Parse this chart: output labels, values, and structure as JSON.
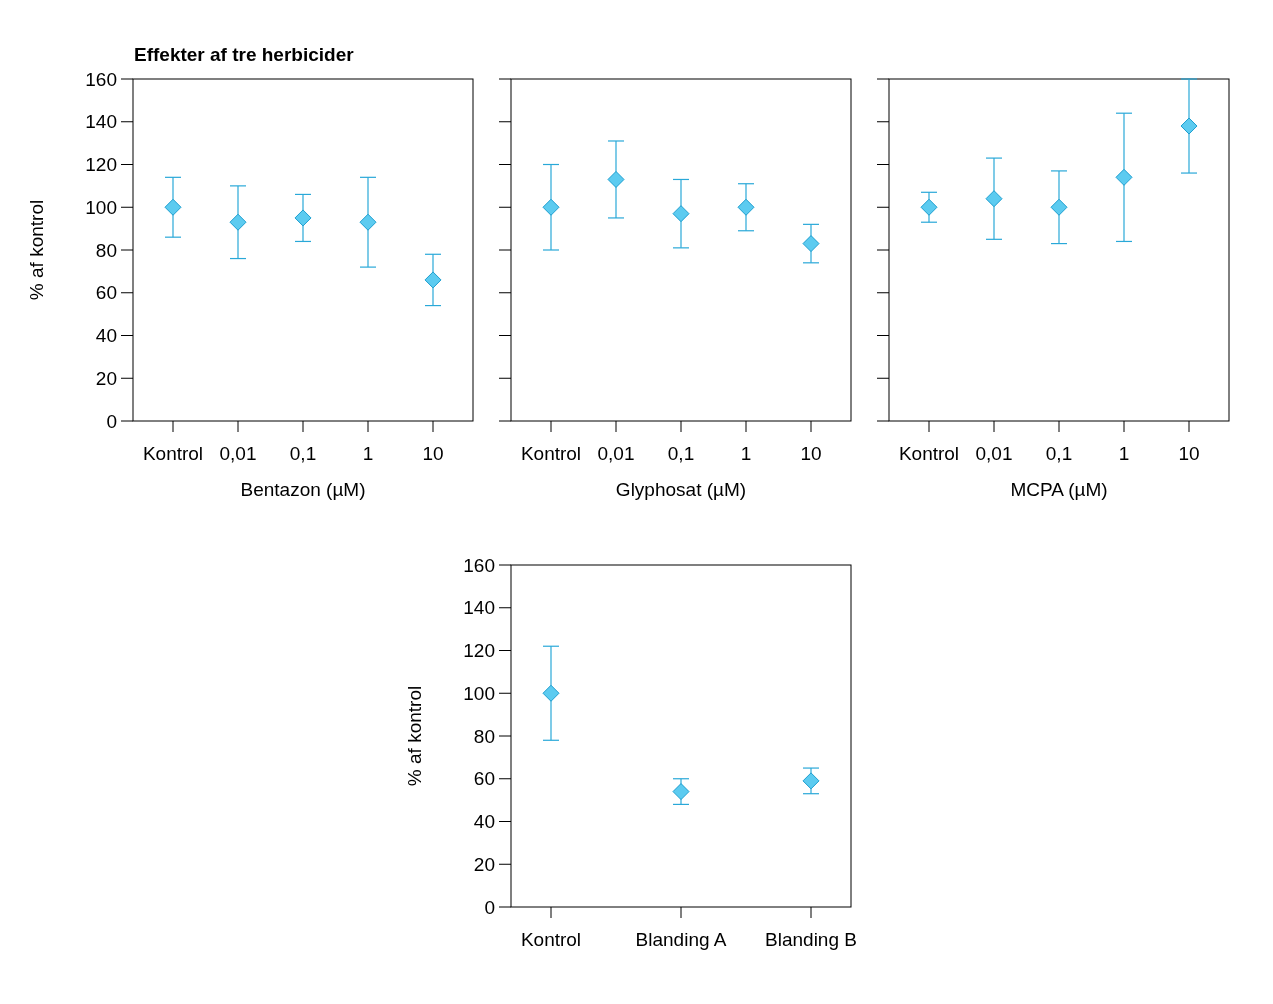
{
  "chart_data": [
    {
      "type": "scatter",
      "title": "Effekter af tre herbicider",
      "xlabel": "Bentazon (µM)",
      "ylabel": "% af kontrol",
      "categories": [
        "Kontrol",
        "0,01",
        "0,1",
        "1",
        "10"
      ],
      "series": [
        {
          "color": "#5ccbf0",
          "values": [
            100,
            93,
            95,
            93,
            66
          ],
          "errors": [
            14,
            17,
            11,
            21,
            12
          ]
        }
      ],
      "ylim": [
        0,
        160
      ],
      "yticks": [
        0,
        20,
        40,
        60,
        80,
        100,
        120,
        140,
        160
      ],
      "marker": "diamond",
      "grid": false
    },
    {
      "type": "scatter",
      "xlabel": "Glyphosat (µM)",
      "categories": [
        "Kontrol",
        "0,01",
        "0,1",
        "1",
        "10"
      ],
      "series": [
        {
          "color": "#5ccbf0",
          "values": [
            100,
            113,
            97,
            100,
            83
          ],
          "errors": [
            20,
            18,
            16,
            11,
            9
          ]
        }
      ],
      "ylim": [
        0,
        160
      ],
      "yticks": [
        0,
        20,
        40,
        60,
        80,
        100,
        120,
        140,
        160
      ],
      "tick_labels": "x",
      "marker": "diamond",
      "grid": false
    },
    {
      "type": "scatter",
      "xlabel": "MCPA (µM)",
      "categories": [
        "Kontrol",
        "0,01",
        "0,1",
        "1",
        "10"
      ],
      "series": [
        {
          "color": "#5ccbf0",
          "values": [
            100,
            104,
            100,
            114,
            138
          ],
          "errors": [
            7,
            19,
            17,
            30,
            22
          ]
        }
      ],
      "ylim": [
        0,
        160
      ],
      "yticks": [
        0,
        20,
        40,
        60,
        80,
        100,
        120,
        140,
        160
      ],
      "tick_labels": "x",
      "marker": "diamond",
      "grid": false
    },
    {
      "type": "scatter",
      "ylabel": "% af kontrol",
      "categories": [
        "Kontrol",
        "Blanding A",
        "Blanding B"
      ],
      "series": [
        {
          "color": "#5ccbf0",
          "values": [
            100,
            54,
            59
          ],
          "errors": [
            22,
            6,
            6
          ]
        }
      ],
      "ylim": [
        0,
        160
      ],
      "yticks": [
        0,
        20,
        40,
        60,
        80,
        100,
        120,
        140,
        160
      ],
      "marker": "diamond",
      "grid": false
    }
  ]
}
